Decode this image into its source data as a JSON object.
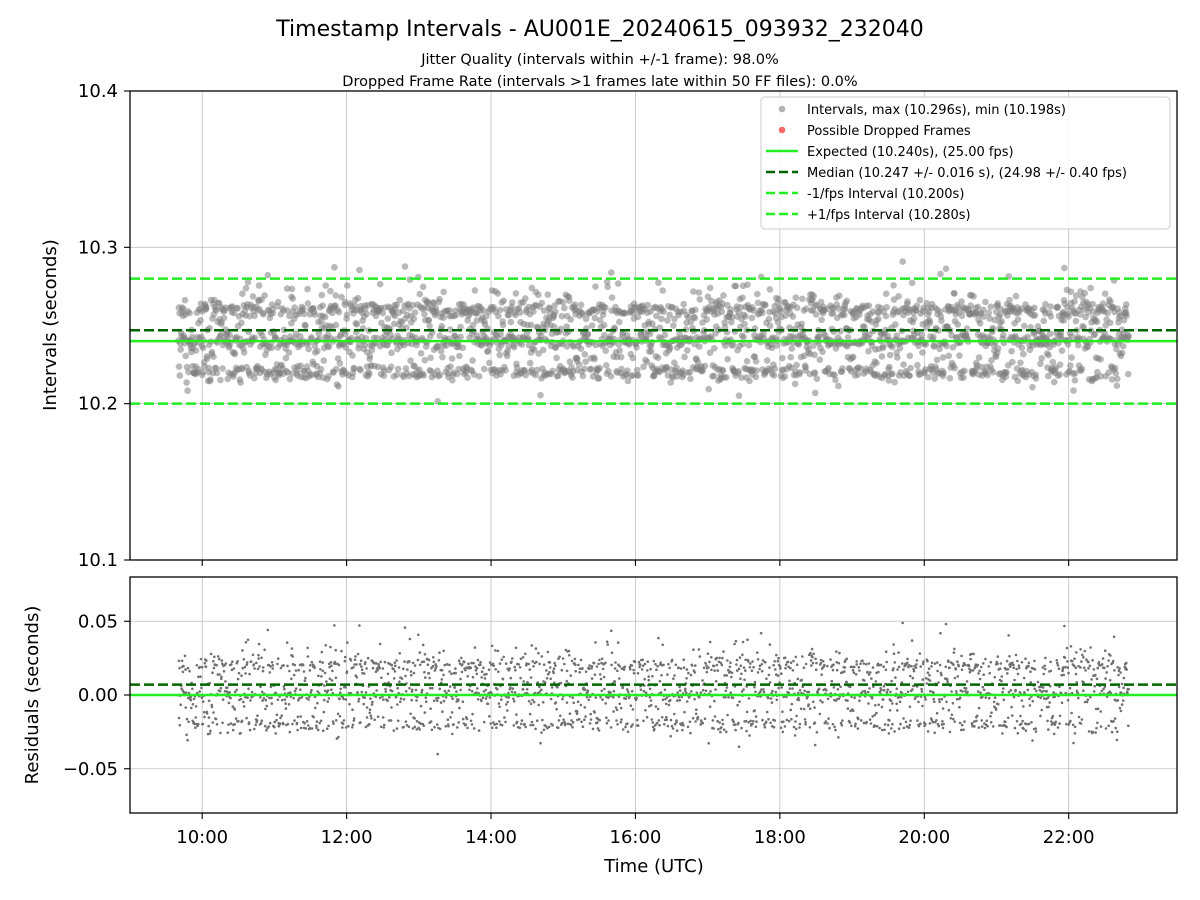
{
  "chart_data": [
    {
      "type": "scatter",
      "title": "Timestamp Intervals - AU001E_20240615_093932_232040",
      "subtitle_lines": [
        "Jitter Quality (intervals within +/-1 frame): 98.0%",
        "Dropped Frame Rate (intervals >1 frames late within 50 FF files): 0.0%"
      ],
      "xlabel": "",
      "ylabel": "Intervals (seconds)",
      "xlim": [
        "09:00",
        "23:30"
      ],
      "ylim": [
        10.1,
        10.4
      ],
      "x_ticks": [
        "10:00",
        "12:00",
        "14:00",
        "16:00",
        "18:00",
        "20:00",
        "22:00"
      ],
      "y_ticks": [
        "10.1",
        "10.2",
        "10.3",
        "10.4"
      ],
      "y_tick_values": [
        10.1,
        10.2,
        10.3,
        10.4
      ],
      "grid": true,
      "legend_placement": "top-right",
      "data_time_range": [
        "09:40",
        "22:50"
      ],
      "levels": [
        10.22,
        10.24,
        10.26
      ],
      "series": [
        {
          "name": "Intervals, max (10.296s), min (10.198s)",
          "kind": "scatter",
          "color": "#808080",
          "max": 10.296,
          "min": 10.198,
          "typical_range": [
            10.21,
            10.28
          ]
        },
        {
          "name": "Possible Dropped Frames",
          "kind": "scatter",
          "color": "#f05050",
          "values": []
        },
        {
          "name": "Expected (10.240s), (25.00 fps)",
          "kind": "hline",
          "value": 10.24,
          "color": "#22ee22",
          "style": "solid"
        },
        {
          "name": "Median (10.247 +/- 0.016 s), (24.98 +/- 0.40 fps)",
          "kind": "hline",
          "value": 10.247,
          "color": "#006400",
          "style": "dashed"
        },
        {
          "name": "-1/fps Interval (10.200s)",
          "kind": "hline",
          "value": 10.2,
          "color": "#22ee22",
          "style": "dashed"
        },
        {
          "name": "+1/fps Interval (10.280s)",
          "kind": "hline",
          "value": 10.28,
          "color": "#22ee22",
          "style": "dashed"
        }
      ]
    },
    {
      "type": "scatter",
      "xlabel": "Time (UTC)",
      "ylabel": "Residuals (seconds)",
      "xlim": [
        "09:00",
        "23:30"
      ],
      "ylim": [
        -0.08,
        0.08
      ],
      "x_ticks": [
        "10:00",
        "12:00",
        "14:00",
        "16:00",
        "18:00",
        "20:00",
        "22:00"
      ],
      "y_ticks": [
        "−0.05",
        "0.00",
        "0.05"
      ],
      "y_tick_values": [
        -0.05,
        0.0,
        0.05
      ],
      "grid": true,
      "series": [
        {
          "kind": "scatter",
          "color": "#707070",
          "max": 0.056,
          "min": -0.042,
          "typical_range": [
            -0.03,
            0.04
          ]
        },
        {
          "kind": "hline",
          "value": 0.0,
          "color": "#22ee22",
          "style": "solid"
        },
        {
          "kind": "hline",
          "value": 0.007,
          "color": "#006400",
          "style": "dashed"
        }
      ]
    }
  ]
}
